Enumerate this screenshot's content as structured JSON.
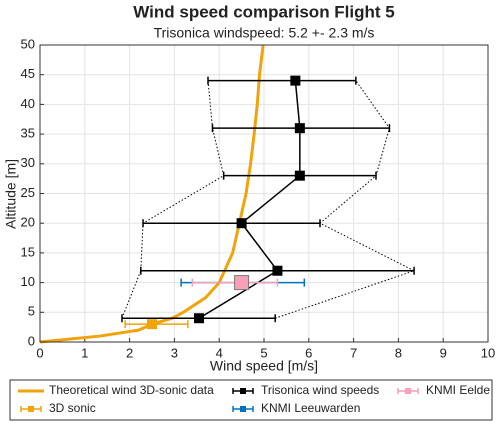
{
  "chart_data": {
    "type": "errorbar-profile",
    "title": "Wind speed comparison Flight 5",
    "subtitle": "Trisonica windspeed: 5.2 +- 2.3 m/s",
    "x_label": "Wind speed [m/s]",
    "y_label": "Altitude [m]",
    "xlim": [
      0,
      10
    ],
    "xticks": [
      0,
      1,
      2,
      3,
      4,
      5,
      6,
      7,
      8,
      9,
      10
    ],
    "ylim": [
      0,
      50
    ],
    "yticks": [
      0,
      5,
      10,
      15,
      20,
      25,
      30,
      35,
      40,
      45,
      50
    ],
    "grid": true,
    "legend": "bottom",
    "series": [
      {
        "name": "Theoretical wind 3D-sonic data",
        "kind": "line",
        "color": "#f0a30a",
        "x": [
          0,
          1.34,
          2.2,
          2.5,
          2.95,
          3.2,
          3.7,
          4.0,
          4.3,
          4.45,
          4.6,
          4.7,
          4.78,
          4.85,
          4.9,
          4.98
        ],
        "y": [
          0,
          1,
          2,
          3,
          4,
          5,
          7.5,
          10,
          15,
          20,
          25,
          30,
          35,
          40,
          45,
          50
        ]
      },
      {
        "name": "3D sonic",
        "kind": "errorbar",
        "marker": "square",
        "color": "#f0a30a",
        "x": [
          2.5
        ],
        "y": [
          3
        ],
        "xmin": [
          1.9
        ],
        "xmax": [
          3.3
        ]
      },
      {
        "name": "Trisonica wind speeds",
        "kind": "errorbar",
        "marker": "square",
        "connect": true,
        "envelope": true,
        "color": "#000000",
        "x": [
          3.55,
          5.3,
          4.5,
          5.8,
          5.8,
          5.7
        ],
        "y": [
          4,
          12,
          20,
          28,
          36,
          44
        ],
        "xmin": [
          1.83,
          2.25,
          2.3,
          4.1,
          3.85,
          3.75
        ],
        "xmax": [
          5.25,
          8.35,
          6.25,
          7.5,
          7.8,
          7.05
        ]
      },
      {
        "name": "KNMI Leeuwarden",
        "kind": "errorbar",
        "marker": "square",
        "color": "#0072bd",
        "x": [
          4.5
        ],
        "y": [
          10
        ],
        "xmin": [
          3.15
        ],
        "xmax": [
          5.9
        ]
      },
      {
        "name": "KNMI Eelde",
        "kind": "errorbar",
        "marker": "big-square",
        "color": "#f7a0b8",
        "x": [
          4.5
        ],
        "y": [
          10
        ],
        "xmin": [
          3.4
        ],
        "xmax": [
          5.3
        ]
      }
    ]
  }
}
